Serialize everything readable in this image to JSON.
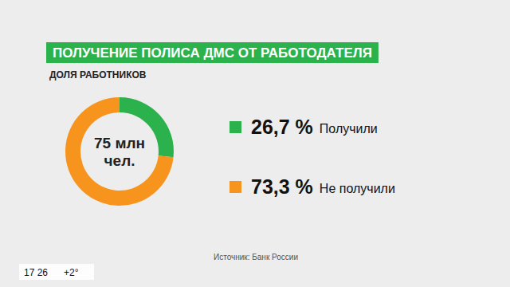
{
  "chart_data": {
    "type": "pie",
    "title": "ПОЛУЧЕНИЕ ПОЛИСА ДМС ОТ РАБОТОДАТЕЛЯ",
    "subtitle": "ДОЛЯ РАБОТНИКОВ",
    "categories": [
      "Получили",
      "Не получили"
    ],
    "values": [
      26.7,
      73.3
    ],
    "value_labels": [
      "26,7 %",
      "73,3 %"
    ],
    "colors": [
      "#2bb24c",
      "#f7941d"
    ],
    "data_labels": true,
    "center_label": [
      "75 млн",
      "чел."
    ],
    "source": "Источник: Банк России"
  },
  "overlay": {
    "time": "17 26",
    "weather": "+2°"
  }
}
